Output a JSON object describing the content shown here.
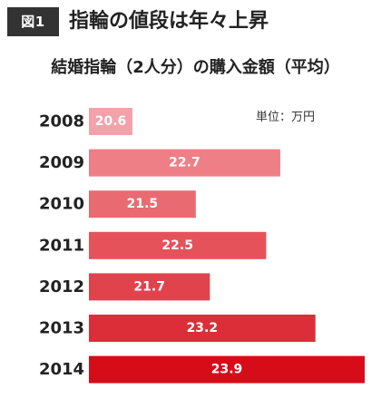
{
  "figure": {
    "label": "図1",
    "title": "指輪の値段は年々上昇"
  },
  "chart_data": {
    "type": "bar",
    "orientation": "horizontal",
    "title": "結婚指輪（2人分）の購入金額（平均）",
    "unit_label": "単位：万円",
    "categories": [
      "2008",
      "2009",
      "2010",
      "2011",
      "2012",
      "2013",
      "2014"
    ],
    "values": [
      20.6,
      22.7,
      21.5,
      22.5,
      21.7,
      23.2,
      23.9
    ],
    "data_labels": [
      "20.6",
      "22.7",
      "21.5",
      "22.5",
      "21.7",
      "23.2",
      "23.9"
    ],
    "colors": [
      "#f2a2a9",
      "#ee7f86",
      "#ea6a72",
      "#e5525a",
      "#e1434c",
      "#dc2e38",
      "#d60d19"
    ],
    "label_color": "#ffffff",
    "category_label_color": "#222222",
    "grid": false,
    "legend": "none"
  }
}
